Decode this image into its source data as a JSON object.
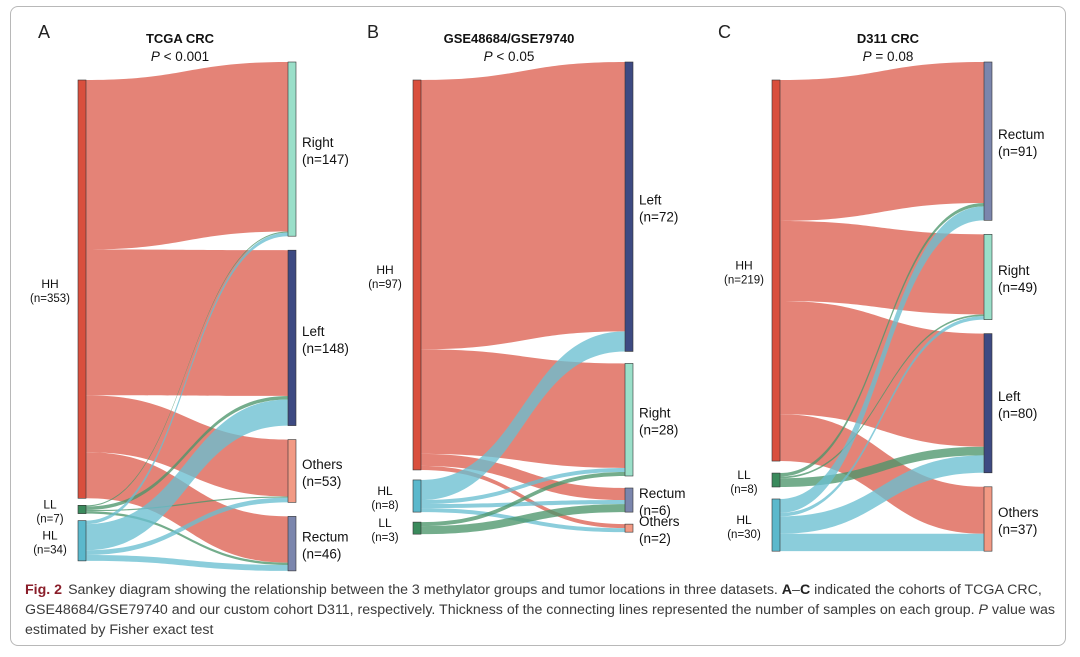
{
  "figure": {
    "label": "Fig. 2",
    "caption": {
      "part1": "Sankey diagram showing the relationship between the 3 methylator groups and tumor locations in three datasets. ",
      "range_a": "A",
      "range_sep": "–",
      "range_c": "C",
      "part2": " indicated the cohorts of TCGA CRC, GSE48684/GSE79740 and our custom cohort D311, respectively. Thickness of the connecting lines represented the number of samples on each group. ",
      "p_symbol": "P",
      "part3": " value was estimated by Fisher exact test"
    }
  },
  "colors": {
    "HH": "#d94f3d",
    "LL": "#3a8a5c",
    "HL": "#5bb8cc",
    "Right": "#9adfc9",
    "Left": "#3d4a82",
    "Others": "#f29a84",
    "Rectum": "#7b86ad"
  },
  "chart_data": [
    {
      "type": "sankey",
      "panel": "A",
      "title": "TCGA CRC",
      "p_label": "P",
      "p_rest": " < 0.001",
      "sources": [
        {
          "id": "HH",
          "label": "HH",
          "n_label": "(n=353)",
          "n": 353
        },
        {
          "id": "LL",
          "label": "LL",
          "n_label": "(n=7)",
          "n": 7
        },
        {
          "id": "HL",
          "label": "HL",
          "n_label": "(n=34)",
          "n": 34
        }
      ],
      "targets": [
        {
          "id": "Right",
          "label": "Right",
          "n_label": "(n=147)",
          "n": 147
        },
        {
          "id": "Left",
          "label": "Left",
          "n_label": "(n=148)",
          "n": 148
        },
        {
          "id": "Others",
          "label": "Others",
          "n_label": "(n=53)",
          "n": 53
        },
        {
          "id": "Rectum",
          "label": "Rectum",
          "n_label": "(n=46)",
          "n": 46
        }
      ],
      "links": [
        {
          "source": "HH",
          "target": "Right",
          "value": 143
        },
        {
          "source": "HH",
          "target": "Left",
          "value": 123
        },
        {
          "source": "HH",
          "target": "Others",
          "value": 48
        },
        {
          "source": "HH",
          "target": "Rectum",
          "value": 39
        },
        {
          "source": "LL",
          "target": "Right",
          "value": 1
        },
        {
          "source": "LL",
          "target": "Left",
          "value": 3
        },
        {
          "source": "LL",
          "target": "Others",
          "value": 1
        },
        {
          "source": "LL",
          "target": "Rectum",
          "value": 2
        },
        {
          "source": "HL",
          "target": "Right",
          "value": 3
        },
        {
          "source": "HL",
          "target": "Left",
          "value": 22
        },
        {
          "source": "HL",
          "target": "Others",
          "value": 4
        },
        {
          "source": "HL",
          "target": "Rectum",
          "value": 5
        }
      ]
    },
    {
      "type": "sankey",
      "panel": "B",
      "title": "GSE48684/GSE79740",
      "p_label": "P",
      "p_rest": " < 0.05",
      "sources": [
        {
          "id": "HH",
          "label": "HH",
          "n_label": "(n=97)",
          "n": 97
        },
        {
          "id": "HL",
          "label": "HL",
          "n_label": "(n=8)",
          "n": 8
        },
        {
          "id": "LL",
          "label": "LL",
          "n_label": "(n=3)",
          "n": 3
        }
      ],
      "targets": [
        {
          "id": "Left",
          "label": "Left",
          "n_label": "(n=72)",
          "n": 72
        },
        {
          "id": "Right",
          "label": "Right",
          "n_label": "(n=28)",
          "n": 28
        },
        {
          "id": "Rectum",
          "label": "Rectum",
          "n_label": "(n=6)",
          "n": 6
        },
        {
          "id": "Others",
          "label": "Others",
          "n_label": "(n=2)",
          "n": 2
        }
      ],
      "links": [
        {
          "source": "HH",
          "target": "Left",
          "value": 67
        },
        {
          "source": "HH",
          "target": "Right",
          "value": 26
        },
        {
          "source": "HH",
          "target": "Rectum",
          "value": 3
        },
        {
          "source": "HH",
          "target": "Others",
          "value": 1
        },
        {
          "source": "HL",
          "target": "Left",
          "value": 5
        },
        {
          "source": "HL",
          "target": "Right",
          "value": 1
        },
        {
          "source": "HL",
          "target": "Rectum",
          "value": 1
        },
        {
          "source": "HL",
          "target": "Others",
          "value": 1
        },
        {
          "source": "LL",
          "target": "Right",
          "value": 1
        },
        {
          "source": "LL",
          "target": "Rectum",
          "value": 2
        }
      ]
    },
    {
      "type": "sankey",
      "panel": "C",
      "title": "D311 CRC",
      "p_label": "P",
      "p_rest": " = 0.08",
      "sources": [
        {
          "id": "HH",
          "label": "HH",
          "n_label": "(n=219)",
          "n": 219
        },
        {
          "id": "LL",
          "label": "LL",
          "n_label": "(n=8)",
          "n": 8
        },
        {
          "id": "HL",
          "label": "HL",
          "n_label": "(n=30)",
          "n": 30
        }
      ],
      "targets": [
        {
          "id": "Rectum",
          "label": "Rectum",
          "n_label": "(n=91)",
          "n": 91
        },
        {
          "id": "Right",
          "label": "Right",
          "n_label": "(n=49)",
          "n": 49
        },
        {
          "id": "Left",
          "label": "Left",
          "n_label": "(n=80)",
          "n": 80
        },
        {
          "id": "Others",
          "label": "Others",
          "n_label": "(n=37)",
          "n": 37
        }
      ],
      "links": [
        {
          "source": "HH",
          "target": "Rectum",
          "value": 81
        },
        {
          "source": "HH",
          "target": "Right",
          "value": 46
        },
        {
          "source": "HH",
          "target": "Left",
          "value": 65
        },
        {
          "source": "HH",
          "target": "Others",
          "value": 27
        },
        {
          "source": "LL",
          "target": "Rectum",
          "value": 2
        },
        {
          "source": "LL",
          "target": "Left",
          "value": 5
        },
        {
          "source": "LL",
          "target": "Right",
          "value": 1
        },
        {
          "source": "HL",
          "target": "Rectum",
          "value": 8
        },
        {
          "source": "HL",
          "target": "Right",
          "value": 2
        },
        {
          "source": "HL",
          "target": "Left",
          "value": 10
        },
        {
          "source": "HL",
          "target": "Others",
          "value": 10
        }
      ]
    }
  ]
}
